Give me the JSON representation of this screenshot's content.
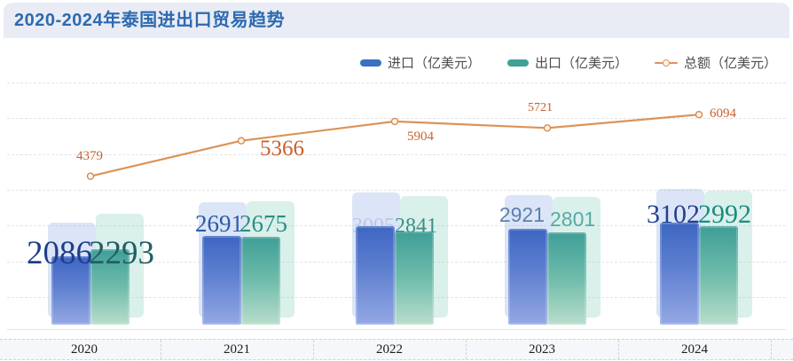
{
  "header": {
    "title": "2020-2024年泰国进出口贸易趋势"
  },
  "legend": {
    "items": [
      {
        "label": "进口（亿美元）",
        "marker": "bar-swatch-blue"
      },
      {
        "label": "出口（亿美元）",
        "marker": "bar-swatch-teal"
      },
      {
        "label": "总额（亿美元）",
        "marker": "line-dot-orange"
      }
    ]
  },
  "chart_data": {
    "type": "bar",
    "title": "2020-2024年泰国进出口贸易趋势",
    "categories": [
      "2020",
      "2021",
      "2022",
      "2023",
      "2024"
    ],
    "series": [
      {
        "name": "进口（亿美元）",
        "type": "bar",
        "color": "#3d66c2",
        "values": [
          2086,
          2691,
          3005,
          2921,
          3102
        ]
      },
      {
        "name": "出口（亿美元）",
        "type": "bar",
        "color": "#3f9e97",
        "values": [
          2293,
          2675,
          2841,
          2801,
          2992
        ]
      },
      {
        "name": "总额（亿美元）",
        "type": "line",
        "color": "#dc9356",
        "values": [
          4379,
          5366,
          5904,
          5721,
          6094
        ]
      }
    ],
    "xlabel": "",
    "ylabel": "",
    "ylim": [
      0,
      7000
    ],
    "grid": "horizontal-dashed",
    "legend_position": "top-right",
    "data_labels_shown": true
  },
  "colors": {
    "header_band": "#e9ecf5",
    "title_text": "#2d6ab0",
    "import_bar": "#3d66c2",
    "export_bar": "#3f9e97",
    "total_line": "#dc9356",
    "total_label": "#c9612f",
    "legend_text": "#4c4c4c",
    "axis_band": "#f6f7fa"
  }
}
